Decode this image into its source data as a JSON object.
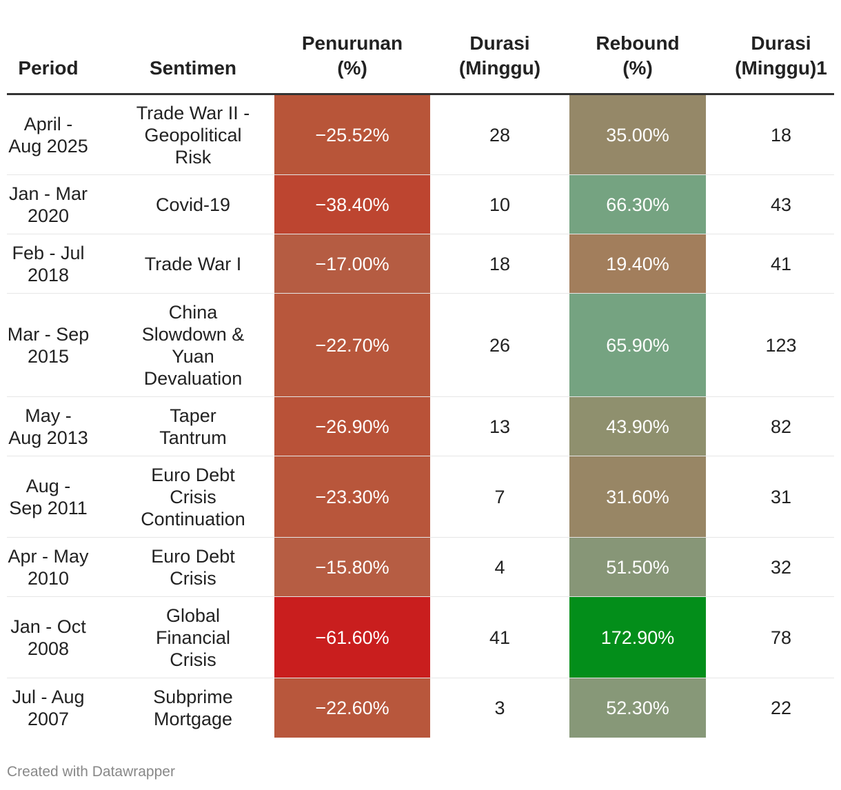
{
  "chart_data": {
    "type": "table",
    "columns": [
      {
        "lines": [
          "Period"
        ]
      },
      {
        "lines": [
          "Sentimen"
        ]
      },
      {
        "lines": [
          "Penurunan",
          "(%)"
        ]
      },
      {
        "lines": [
          "Durasi",
          "(Minggu)"
        ]
      },
      {
        "lines": [
          "Rebound",
          "(%)"
        ]
      },
      {
        "lines": [
          "Durasi",
          "(Minggu)1"
        ]
      }
    ],
    "rows": [
      {
        "period": "April - Aug 2025",
        "sentimen": "Trade War II - Geopolitical Risk",
        "penurunan": "−25.52%",
        "durasi_turun": "28",
        "rebound": "35.00%",
        "durasi_rebound": "18",
        "penurunan_value": -25.52,
        "rebound_value": 35.0,
        "penurunan_color": "#b85539",
        "rebound_color": "#958868"
      },
      {
        "period": "Jan - Mar 2020",
        "sentimen": "Covid-19",
        "penurunan": "−38.40%",
        "durasi_turun": "10",
        "rebound": "66.30%",
        "durasi_rebound": "43",
        "penurunan_value": -38.4,
        "rebound_value": 66.3,
        "penurunan_color": "#bd4530",
        "rebound_color": "#75a381"
      },
      {
        "period": "Feb - Jul 2018",
        "sentimen": "Trade War I",
        "penurunan": "−17.00%",
        "durasi_turun": "18",
        "rebound": "19.40%",
        "durasi_rebound": "41",
        "penurunan_value": -17.0,
        "rebound_value": 19.4,
        "penurunan_color": "#b55c42",
        "rebound_color": "#a27e5c"
      },
      {
        "period": "Mar - Sep 2015",
        "sentimen": "China Slowdown & Yuan Devaluation",
        "penurunan": "−22.70%",
        "durasi_turun": "26",
        "rebound": "65.90%",
        "durasi_rebound": "123",
        "penurunan_value": -22.7,
        "rebound_value": 65.9,
        "penurunan_color": "#b8573c",
        "rebound_color": "#75a381"
      },
      {
        "period": "May - Aug 2013",
        "sentimen": "Taper Tantrum",
        "penurunan": "−26.90%",
        "durasi_turun": "13",
        "rebound": "43.90%",
        "durasi_rebound": "82",
        "penurunan_value": -26.9,
        "rebound_value": 43.9,
        "penurunan_color": "#b95238",
        "rebound_color": "#8f906e"
      },
      {
        "period": "Aug - Sep 2011",
        "sentimen": "Euro Debt Crisis Continuation",
        "penurunan": "−23.30%",
        "durasi_turun": "7",
        "rebound": "31.60%",
        "durasi_rebound": "31",
        "penurunan_value": -23.3,
        "rebound_value": 31.6,
        "penurunan_color": "#b8563b",
        "rebound_color": "#988665"
      },
      {
        "period": "Apr - May 2010",
        "sentimen": "Euro Debt Crisis",
        "penurunan": "−15.80%",
        "durasi_turun": "4",
        "rebound": "51.50%",
        "durasi_rebound": "32",
        "penurunan_value": -15.8,
        "rebound_value": 51.5,
        "penurunan_color": "#b65d43",
        "rebound_color": "#879677"
      },
      {
        "period": "Jan - Oct 2008",
        "sentimen": "Global Financial Crisis",
        "penurunan": "−61.60%",
        "durasi_turun": "41",
        "rebound": "172.90%",
        "durasi_rebound": "78",
        "penurunan_value": -61.6,
        "rebound_value": 172.9,
        "penurunan_color": "#c91e1e",
        "rebound_color": "#038e1a"
      },
      {
        "period": "Jul - Aug 2007",
        "sentimen": "Subprime Mortgage",
        "penurunan": "−22.60%",
        "durasi_turun": "3",
        "rebound": "52.30%",
        "durasi_rebound": "22",
        "penurunan_value": -22.6,
        "rebound_value": 52.3,
        "penurunan_color": "#b8573c",
        "rebound_color": "#879878"
      }
    ]
  },
  "footer": {
    "credit": "Created with Datawrapper"
  }
}
